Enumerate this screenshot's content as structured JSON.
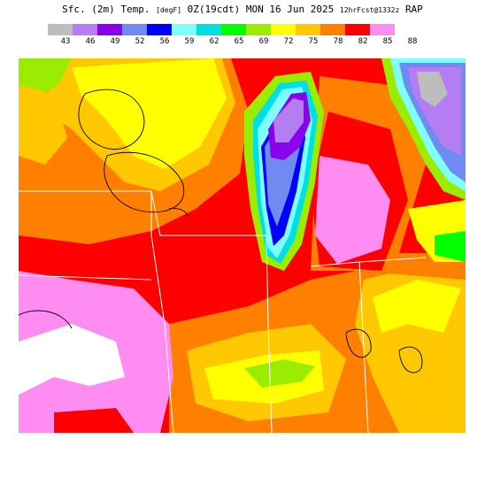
{
  "title": {
    "main": "Sfc. (2m) Temp.",
    "unit": "[degF]",
    "valid": "0Z(19cdt) MON 16 Jun 2025",
    "fcst": "12hrFcst@1332z",
    "model": "RAP"
  },
  "legend": {
    "colors": [
      "#bdbdbd",
      "#b57df2",
      "#8a00ee",
      "#6f8af0",
      "#0000ff",
      "#7fffff",
      "#00dfe4",
      "#00ff00",
      "#9aec00",
      "#ffff00",
      "#ffc800",
      "#ff8000",
      "#ff0000",
      "#ff8cf0"
    ],
    "labels": [
      "43",
      "46",
      "49",
      "52",
      "56",
      "59",
      "62",
      "65",
      "69",
      "72",
      "75",
      "78",
      "82",
      "85",
      "88"
    ]
  },
  "map": {
    "palette": {
      "t43": "#bdbdbd",
      "t46": "#b57df2",
      "t49": "#8a00ee",
      "t52": "#6f8af0",
      "t56": "#0000ff",
      "t59": "#7fffff",
      "t62": "#00dfe4",
      "t65": "#00ff00",
      "t69": "#9aec00",
      "t72": "#ffff00",
      "t75": "#ffc800",
      "t78": "#ff8000",
      "t82": "#ff0000",
      "t85": "#ff8cf0",
      "t88": "#ffffff"
    }
  }
}
